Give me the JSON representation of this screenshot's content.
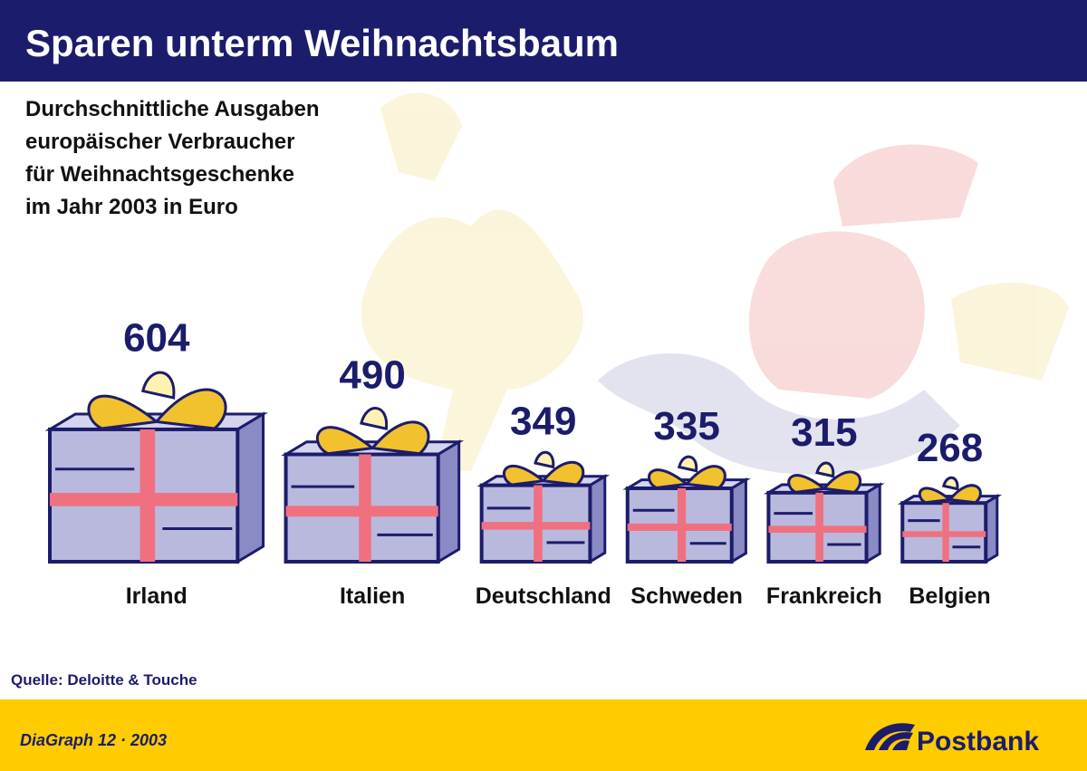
{
  "chart_data": {
    "type": "pictogram",
    "title": "Sparen unterm Weihnachtsbaum",
    "subtitle": [
      "Durchschnittliche Ausgaben",
      "europäischer Verbraucher",
      "für Weihnachtsgeschenke",
      "im Jahr 2003 in Euro"
    ],
    "categories": [
      "Irland",
      "Italien",
      "Deutschland",
      "Schweden",
      "Frankreich",
      "Belgien"
    ],
    "values": [
      604,
      490,
      349,
      335,
      315,
      268
    ],
    "color": "#b9b9dd",
    "source": "Quelle: Deloitte & Touche"
  },
  "footer": {
    "left": "DiaGraph 12 · 2003",
    "brand": "Postbank"
  }
}
